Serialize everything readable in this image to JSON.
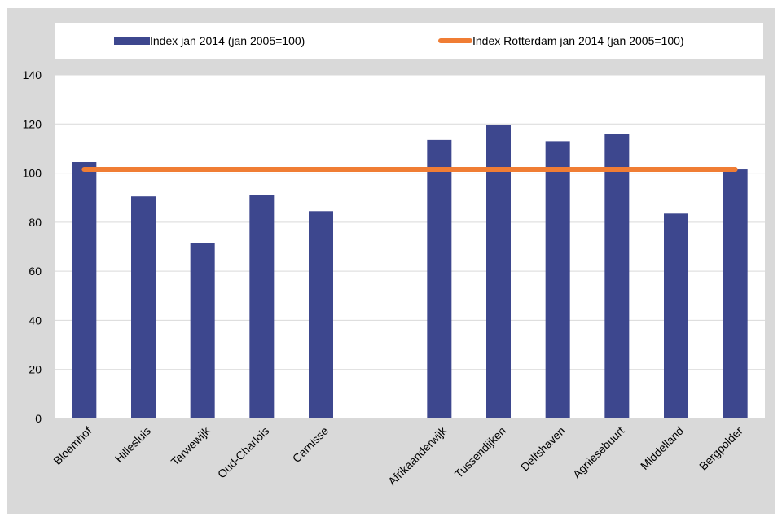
{
  "chart_data": {
    "type": "bar",
    "title": "",
    "xlabel": "",
    "ylabel": "",
    "ylim": [
      0,
      140
    ],
    "yticks": [
      0,
      20,
      40,
      60,
      80,
      100,
      120,
      140
    ],
    "grid": true,
    "legend_position": "top",
    "categories": [
      "Bloemhof",
      "Hillesluis",
      "Tarwewijk",
      "Oud-Charlois",
      "Carnisse",
      "",
      "Afrikaanderwijk",
      "Tussendijken",
      "Delfshaven",
      "Agniesebuurt",
      "Middelland",
      "Bergpolder"
    ],
    "series": [
      {
        "name": "Index jan 2014 (jan 2005=100)",
        "type": "bar",
        "color": "#3d478e",
        "values": [
          104.5,
          90.5,
          71.5,
          91,
          84.5,
          null,
          113.5,
          119.5,
          113,
          116,
          83.5,
          101.5
        ]
      },
      {
        "name": "Index Rotterdam jan 2014 (jan 2005=100)",
        "type": "line",
        "color": "#f07d34",
        "values": [
          101.5,
          101.5,
          101.5,
          101.5,
          101.5,
          101.5,
          101.5,
          101.5,
          101.5,
          101.5,
          101.5,
          101.5
        ]
      }
    ]
  }
}
